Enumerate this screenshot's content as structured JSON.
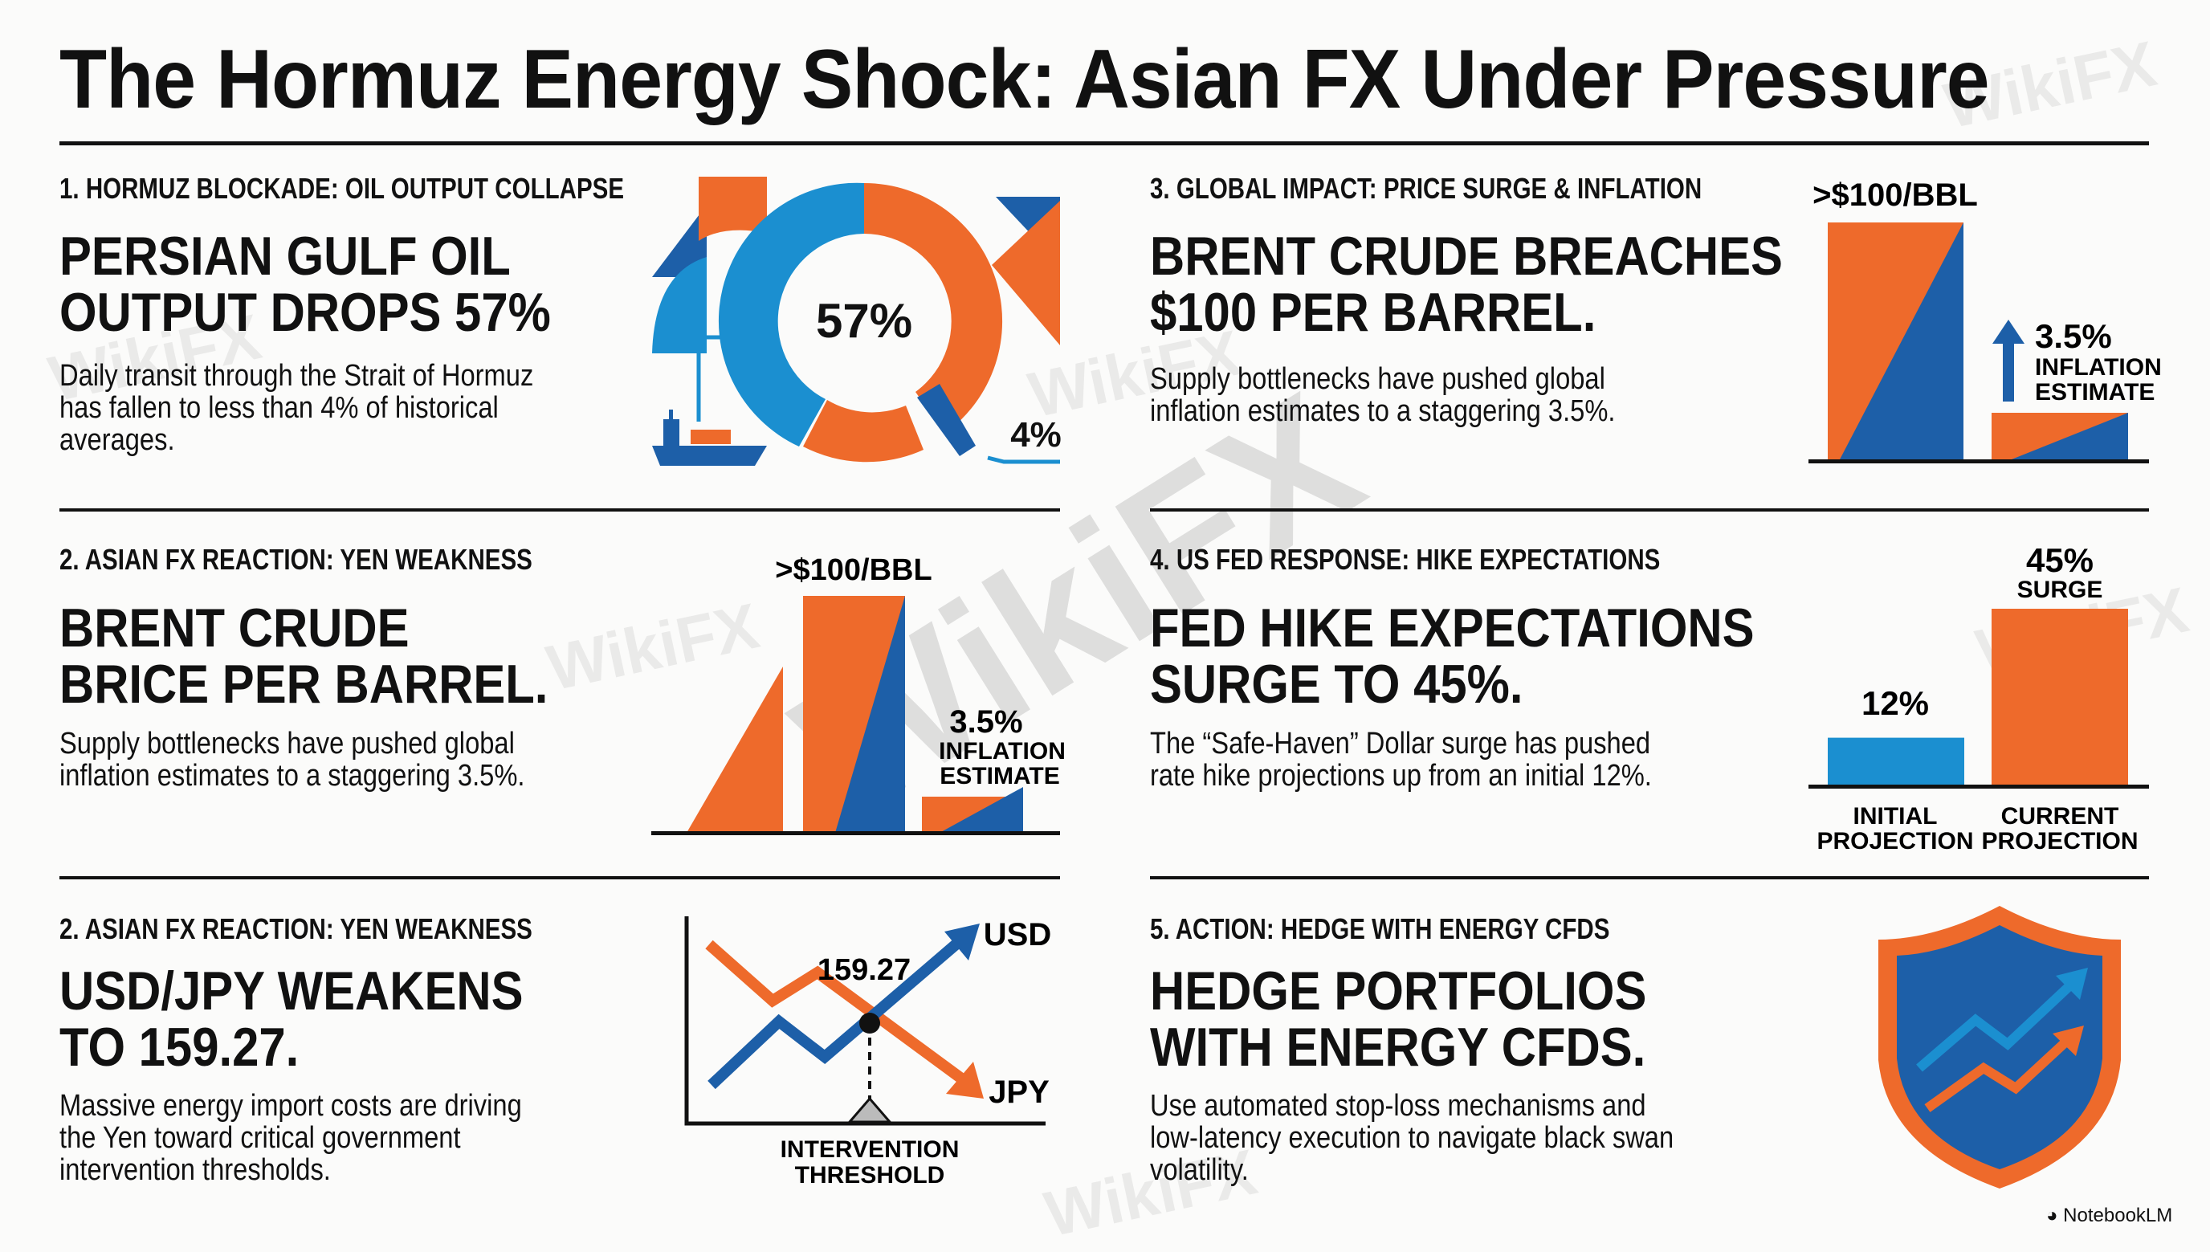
{
  "title": "The Hormuz Energy Shock: Asian FX Under Pressure",
  "colors": {
    "orange": "#EE6A2B",
    "blue": "#1B8FD0",
    "dark_blue": "#1D5FA8",
    "text": "#111111"
  },
  "panels": [
    {
      "label": "1. HORMUZ BLOCKADE: OIL OUTPUT COLLAPSE",
      "headline": [
        "PERSIAN GULF OIL",
        "OUTPUT DROPS 57%"
      ],
      "body": [
        "Daily transit through the Strait of Hormuz",
        "has fallen to less than 4% of historical",
        "averages."
      ],
      "graphic": {
        "type": "donut",
        "center_value": "57%",
        "side_value": "4%",
        "icon": "ship-icon"
      }
    },
    {
      "label": "2. ASIAN FX REACTION: YEN WEAKNESS",
      "headline": [
        "BRENT CRUDE",
        "BRICE PER BARREL."
      ],
      "body": [
        "Supply bottlenecks have pushed global",
        "inflation estimates to a staggering 3.5%."
      ],
      "graphic": {
        "type": "bar",
        "price_label": ">$100/BBL",
        "inflation_value": "3.5%",
        "inflation_label": [
          "INFLATION",
          "ESTIMATE"
        ]
      }
    },
    {
      "label": "3. GLOBAL IMPACT: PRICE SURGE & INFLATION",
      "headline": [
        "BRENT CRUDE BREACHES",
        "$100 PER BARREL."
      ],
      "body": [
        "Supply bottlenecks have pushed global",
        "inflation estimates to a staggering 3.5%."
      ],
      "graphic": {
        "type": "bar",
        "price_label": ">$100/BBL",
        "inflation_value": "3.5%",
        "inflation_label": [
          "INFLATION",
          "ESTIMATE"
        ]
      }
    },
    {
      "label": "4. US FED RESPONSE: HIKE EXPECTATIONS",
      "headline": [
        "FED HIKE EXPECTATIONS",
        "SURGE TO 45%."
      ],
      "body": [
        "The “Safe-Haven” Dollar surge has pushed",
        "rate hike projections up from an initial 12%."
      ],
      "graphic": {
        "type": "bar",
        "bars": [
          {
            "value": 12,
            "value_label": "12%",
            "category": [
              "INITIAL",
              "PROJECTION"
            ],
            "color": "#1B8FD0"
          },
          {
            "value": 45,
            "value_label": "45%",
            "sub_label": "SURGE",
            "category": [
              "CURRENT",
              "PROJECTION"
            ],
            "color": "#EE6A2B"
          }
        ]
      }
    },
    {
      "label": "2. ASIAN FX REACTION: YEN WEAKNESS",
      "headline": [
        "USD/JPY WEAKENS",
        "TO 159.27."
      ],
      "body": [
        "Massive energy import costs are driving",
        "the Yen toward critical government",
        "intervention thresholds."
      ],
      "graphic": {
        "type": "line",
        "cross_value": "159.27",
        "series": [
          "USD",
          "JPY"
        ],
        "threshold_label": [
          "INTERVENTION",
          "THRESHOLD"
        ]
      }
    },
    {
      "label": "5. ACTION: HEDGE WITH ENERGY CFDS",
      "headline": [
        "HEDGE PORTFOLIOS",
        "WITH ENERGY CFDS."
      ],
      "body": [
        "Use automated stop-loss mechanisms and",
        "low-latency execution to navigate black swan",
        "volatility."
      ],
      "graphic": {
        "type": "icon",
        "icon": "shield-chart-icon"
      }
    }
  ],
  "watermark": "WikiFX",
  "footer": {
    "brand": "NotebookLM"
  }
}
